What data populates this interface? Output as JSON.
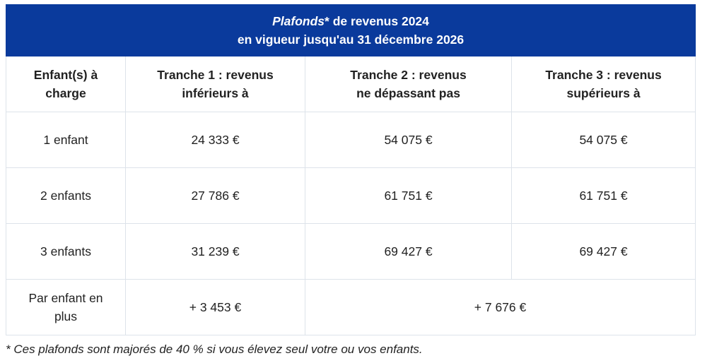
{
  "title": {
    "line1_italic": "Plafonds",
    "line1_rest": "* de revenus 2024",
    "line2": "en vigueur jusqu'au 31 décembre 2026"
  },
  "headers": [
    {
      "l1": "Enfant(s) à",
      "l2": "charge"
    },
    {
      "l1": "Tranche 1 : revenus",
      "l2": "inférieurs à"
    },
    {
      "l1": "Tranche 2 : revenus",
      "l2": "ne dépassant pas"
    },
    {
      "l1": "Tranche 3 : revenus",
      "l2": "supérieurs à"
    }
  ],
  "rows": [
    [
      "1 enfant",
      "24 333 €",
      "54 075 €",
      "54 075 €"
    ],
    [
      "2 enfants",
      "27 786 €",
      "61 751 €",
      "61 751 €"
    ],
    [
      "3 enfants",
      "31 239 €",
      "69 427 €",
      "69 427 €"
    ]
  ],
  "extra_row": {
    "label_l1": "Par enfant en",
    "label_l2": "plus",
    "tranche1": "+ 3 453 €",
    "tranche2_3": "+ 7 676 €"
  },
  "footnote": "* Ces plafonds sont majorés de 40 % si vous élevez seul votre ou vos enfants."
}
